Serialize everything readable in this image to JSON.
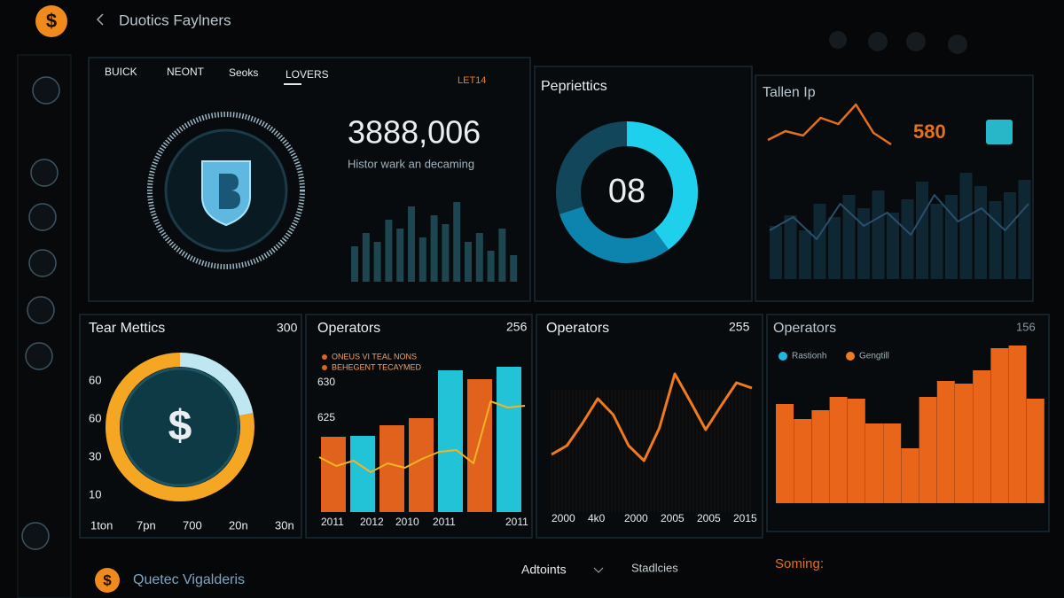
{
  "header": {
    "logo": "$",
    "title": "Duotics Faylners"
  },
  "hero": {
    "tabs": [
      "BUICK",
      "NEONT",
      "Seoks",
      "LOVERS"
    ],
    "range": "LET14",
    "value": "3888,006",
    "caption": "Histor wark an decaming",
    "bars": [
      40,
      55,
      45,
      70,
      60,
      85,
      50,
      75,
      65,
      90,
      45,
      55,
      35,
      60,
      30
    ],
    "color": "#1d4650"
  },
  "ring": {
    "title": "Pepriettics",
    "center": "08",
    "values": [
      40,
      30,
      30
    ],
    "colors": [
      "#1fd0ec",
      "#0d84ad",
      "#12465a"
    ]
  },
  "trend": {
    "title": "Tallen Ip",
    "value": "580",
    "line": [
      20,
      30,
      25,
      45,
      38,
      60,
      28,
      15
    ],
    "line_color": "#e3701c",
    "wave": [
      40,
      55,
      30,
      70,
      45,
      60,
      35,
      80,
      50,
      65,
      40,
      70
    ],
    "wave_color": "#2a4f6a",
    "bars": [
      60,
      72,
      55,
      85,
      70,
      95,
      80,
      100,
      75,
      90,
      110,
      85,
      95,
      120,
      105,
      88,
      98,
      112
    ],
    "bar_color": "#0f2733"
  },
  "metrics": {
    "title": "Tear Mettics",
    "total": "300",
    "y_labels": [
      "60",
      "60",
      "30",
      "10"
    ],
    "x_labels": [
      "1ton",
      "7pn",
      "700",
      "20n",
      "30n"
    ],
    "values": [
      22,
      78
    ],
    "colors": [
      "#bfe7f2",
      "#f5a623"
    ],
    "center": "$"
  },
  "operators_bars": {
    "title": "Operators",
    "total": "256",
    "legend": [
      "ONEUS VI TEAL NONS",
      "BEHEGENT TECAYMED"
    ],
    "y_labels": [
      "630",
      "625"
    ],
    "x_labels": [
      "2011",
      "2012",
      "2010",
      "2011",
      "2011"
    ],
    "bars": [
      85,
      86,
      98,
      106,
      160,
      150,
      164
    ],
    "bar_colors": [
      "#e1621c",
      "#22c3d6",
      "#e1621c",
      "#e1621c",
      "#22c3d6",
      "#e1621c",
      "#22c3d6"
    ],
    "line": [
      62,
      52,
      58,
      45,
      55,
      50,
      60,
      68,
      70,
      55,
      125,
      118,
      120
    ],
    "line_color": "#f2b424"
  },
  "operators_line": {
    "title": "Operators",
    "total": "255",
    "x_labels": [
      "2000",
      "4k0",
      "2000",
      "2005",
      "2005",
      "2015"
    ],
    "line": [
      65,
      75,
      100,
      128,
      110,
      75,
      58,
      95,
      156,
      125,
      93,
      120,
      146,
      140
    ],
    "line_color": "#f07a1c"
  },
  "operators_area": {
    "title": "Operators",
    "total": "156",
    "legend": [
      "Rastionh",
      "Gengtill"
    ],
    "legend_colors": [
      "#22b5e0",
      "#f07a1c"
    ],
    "bars": [
      112,
      95,
      105,
      120,
      118,
      90,
      90,
      62,
      120,
      138,
      135,
      150,
      175,
      178,
      118
    ],
    "bar_color": "#e8651a"
  },
  "footer": {
    "logo": "$",
    "title": "Quetec Vigalderis",
    "menu": "Adtoints",
    "link": "Stadlcies",
    "status": "Soming:"
  }
}
